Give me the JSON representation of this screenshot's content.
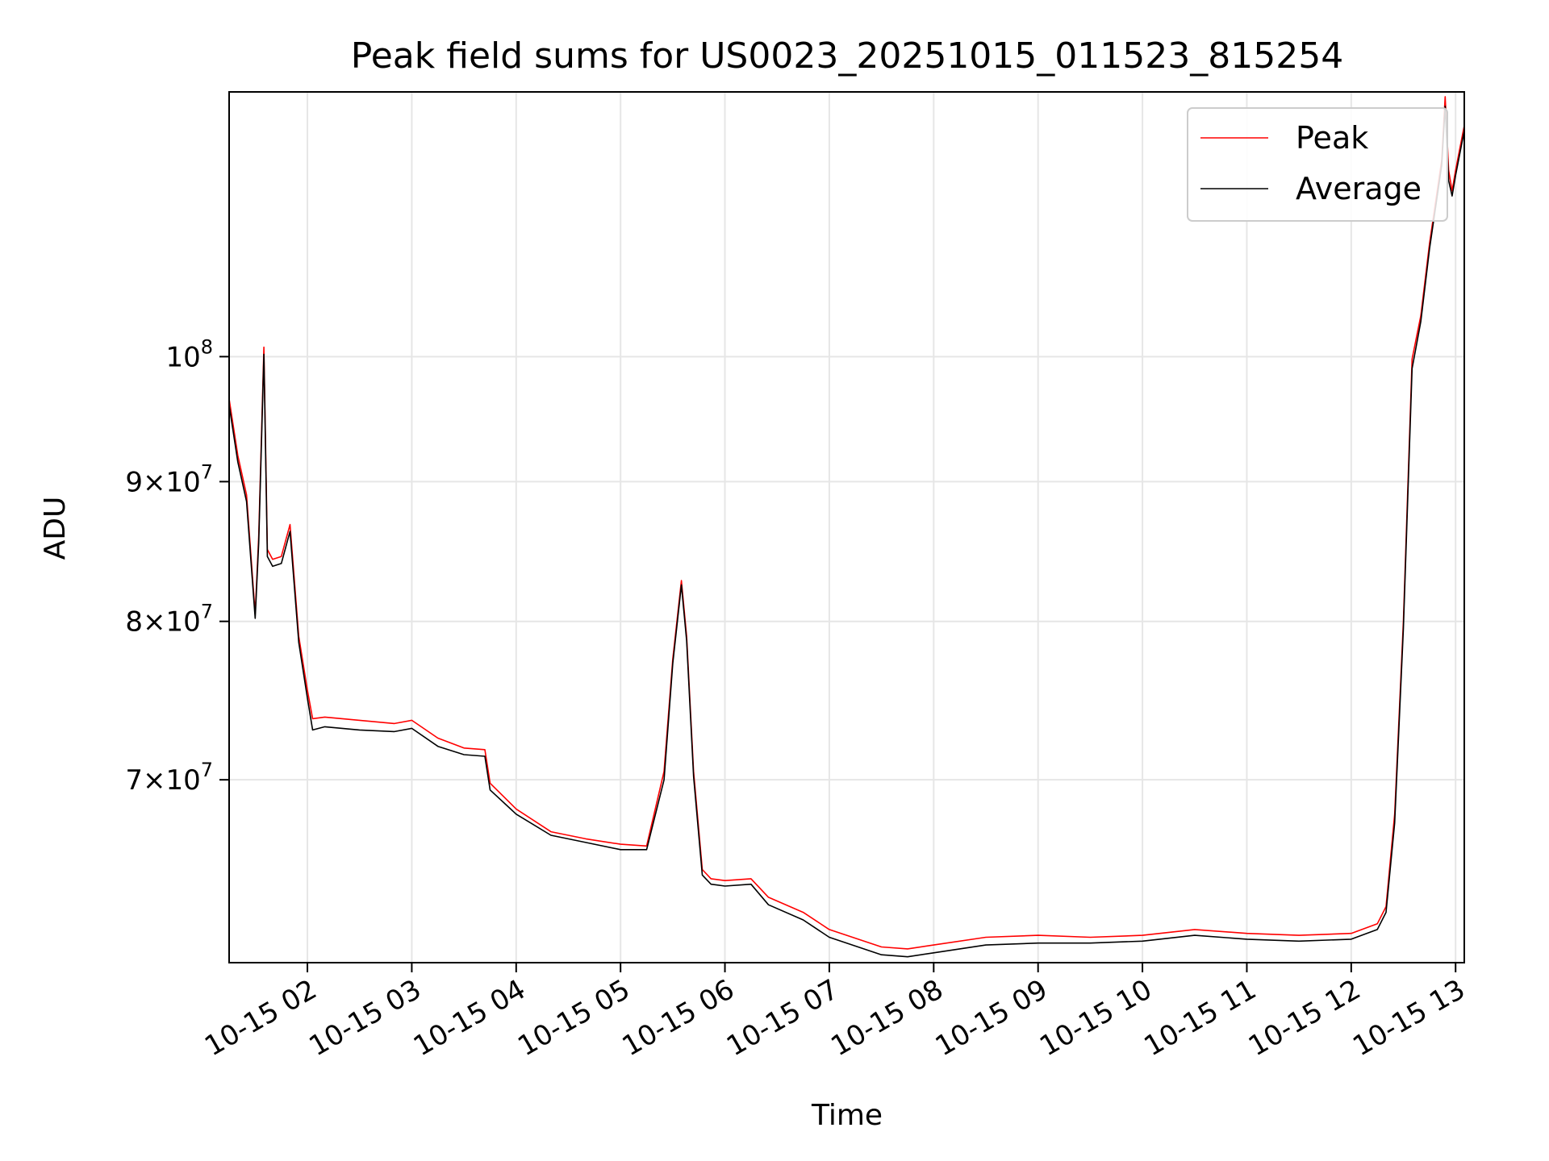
{
  "chart_data": {
    "type": "line",
    "title": "Peak field sums for US0023_20251015_011523_815254",
    "xlabel": "Time",
    "ylabel": "ADU",
    "yscale": "log",
    "xlim": [
      "2025-10-15 01:15",
      "2025-10-15 13:05"
    ],
    "ylim": [
      60000000,
      125000000
    ],
    "grid": true,
    "legend": "upper right",
    "x_ticks": [
      {
        "t": "2025-10-15 02:00",
        "label": "10-15 02"
      },
      {
        "t": "2025-10-15 03:00",
        "label": "10-15 03"
      },
      {
        "t": "2025-10-15 04:00",
        "label": "10-15 04"
      },
      {
        "t": "2025-10-15 05:00",
        "label": "10-15 05"
      },
      {
        "t": "2025-10-15 06:00",
        "label": "10-15 06"
      },
      {
        "t": "2025-10-15 07:00",
        "label": "10-15 07"
      },
      {
        "t": "2025-10-15 08:00",
        "label": "10-15 08"
      },
      {
        "t": "2025-10-15 09:00",
        "label": "10-15 09"
      },
      {
        "t": "2025-10-15 10:00",
        "label": "10-15 10"
      },
      {
        "t": "2025-10-15 11:00",
        "label": "10-15 11"
      },
      {
        "t": "2025-10-15 12:00",
        "label": "10-15 12"
      },
      {
        "t": "2025-10-15 13:00",
        "label": "10-15 13"
      }
    ],
    "y_ticks": [
      {
        "v": 70000000,
        "mant": "7",
        "exp": "7"
      },
      {
        "v": 80000000,
        "mant": "8",
        "exp": "7"
      },
      {
        "v": 90000000,
        "mant": "9",
        "exp": "7"
      },
      {
        "v": 100000000,
        "mant": "",
        "exp": "8"
      }
    ],
    "series": [
      {
        "name": "Peak",
        "color": "#ff0000",
        "x": [
          "2025-10-15 01:15",
          "2025-10-15 01:20",
          "2025-10-15 01:25",
          "2025-10-15 01:30",
          "2025-10-15 01:32",
          "2025-10-15 01:35",
          "2025-10-15 01:37",
          "2025-10-15 01:40",
          "2025-10-15 01:45",
          "2025-10-15 01:50",
          "2025-10-15 01:55",
          "2025-10-15 02:00",
          "2025-10-15 02:03",
          "2025-10-15 02:10",
          "2025-10-15 02:30",
          "2025-10-15 02:50",
          "2025-10-15 03:00",
          "2025-10-15 03:15",
          "2025-10-15 03:30",
          "2025-10-15 03:42",
          "2025-10-15 03:45",
          "2025-10-15 04:00",
          "2025-10-15 04:20",
          "2025-10-15 04:40",
          "2025-10-15 05:00",
          "2025-10-15 05:15",
          "2025-10-15 05:25",
          "2025-10-15 05:30",
          "2025-10-15 05:35",
          "2025-10-15 05:38",
          "2025-10-15 05:42",
          "2025-10-15 05:47",
          "2025-10-15 05:52",
          "2025-10-15 06:00",
          "2025-10-15 06:15",
          "2025-10-15 06:25",
          "2025-10-15 06:45",
          "2025-10-15 07:00",
          "2025-10-15 07:30",
          "2025-10-15 07:45",
          "2025-10-15 08:00",
          "2025-10-15 08:30",
          "2025-10-15 09:00",
          "2025-10-15 09:30",
          "2025-10-15 10:00",
          "2025-10-15 10:30",
          "2025-10-15 11:00",
          "2025-10-15 11:30",
          "2025-10-15 12:00",
          "2025-10-15 12:15",
          "2025-10-15 12:20",
          "2025-10-15 12:25",
          "2025-10-15 12:30",
          "2025-10-15 12:35",
          "2025-10-15 12:40",
          "2025-10-15 12:45",
          "2025-10-15 12:52",
          "2025-10-15 12:54",
          "2025-10-15 12:56",
          "2025-10-15 12:58",
          "2025-10-15 13:00",
          "2025-10-15 13:05"
        ],
        "y": [
          96500000,
          92000000,
          89000000,
          80500000,
          86000000,
          100800000,
          85000000,
          84300000,
          84500000,
          86800000,
          79000000,
          75500000,
          73700000,
          73800000,
          73600000,
          73400000,
          73600000,
          72500000,
          71900000,
          71800000,
          69800000,
          68300000,
          67000000,
          66600000,
          66300000,
          66200000,
          70500000,
          77500000,
          82800000,
          79000000,
          70500000,
          64900000,
          64400000,
          64300000,
          64400000,
          63400000,
          62600000,
          61700000,
          60800000,
          60700000,
          60900000,
          61300000,
          61400000,
          61300000,
          61400000,
          61700000,
          61500000,
          61400000,
          61500000,
          62000000,
          62900000,
          68000000,
          80000000,
          99800000,
          103500000,
          110000000,
          118000000,
          124500000,
          117000000,
          115000000,
          117000000,
          121500000
        ]
      },
      {
        "name": "Average",
        "color": "#000000",
        "x": [
          "2025-10-15 01:15",
          "2025-10-15 01:20",
          "2025-10-15 01:25",
          "2025-10-15 01:30",
          "2025-10-15 01:32",
          "2025-10-15 01:35",
          "2025-10-15 01:37",
          "2025-10-15 01:40",
          "2025-10-15 01:45",
          "2025-10-15 01:50",
          "2025-10-15 01:55",
          "2025-10-15 02:00",
          "2025-10-15 02:03",
          "2025-10-15 02:10",
          "2025-10-15 02:30",
          "2025-10-15 02:50",
          "2025-10-15 03:00",
          "2025-10-15 03:15",
          "2025-10-15 03:30",
          "2025-10-15 03:42",
          "2025-10-15 03:45",
          "2025-10-15 04:00",
          "2025-10-15 04:20",
          "2025-10-15 04:40",
          "2025-10-15 05:00",
          "2025-10-15 05:15",
          "2025-10-15 05:25",
          "2025-10-15 05:30",
          "2025-10-15 05:35",
          "2025-10-15 05:38",
          "2025-10-15 05:42",
          "2025-10-15 05:47",
          "2025-10-15 05:52",
          "2025-10-15 06:00",
          "2025-10-15 06:15",
          "2025-10-15 06:25",
          "2025-10-15 06:45",
          "2025-10-15 07:00",
          "2025-10-15 07:30",
          "2025-10-15 07:45",
          "2025-10-15 08:00",
          "2025-10-15 08:30",
          "2025-10-15 09:00",
          "2025-10-15 09:30",
          "2025-10-15 10:00",
          "2025-10-15 10:30",
          "2025-10-15 11:00",
          "2025-10-15 11:30",
          "2025-10-15 12:00",
          "2025-10-15 12:15",
          "2025-10-15 12:20",
          "2025-10-15 12:25",
          "2025-10-15 12:30",
          "2025-10-15 12:35",
          "2025-10-15 12:40",
          "2025-10-15 12:45",
          "2025-10-15 12:52",
          "2025-10-15 12:54",
          "2025-10-15 12:56",
          "2025-10-15 12:58",
          "2025-10-15 13:00",
          "2025-10-15 13:05"
        ],
        "y": [
          96000000,
          91500000,
          88500000,
          80200000,
          85500000,
          100200000,
          84500000,
          83800000,
          84000000,
          86300000,
          78600000,
          75000000,
          73000000,
          73200000,
          73000000,
          72900000,
          73100000,
          72000000,
          71500000,
          71400000,
          69400000,
          68000000,
          66800000,
          66400000,
          66000000,
          66000000,
          70000000,
          77200000,
          82500000,
          78700000,
          70200000,
          64600000,
          64100000,
          64000000,
          64100000,
          63000000,
          62200000,
          61300000,
          60400000,
          60300000,
          60500000,
          60900000,
          61000000,
          61000000,
          61100000,
          61400000,
          61200000,
          61100000,
          61200000,
          61700000,
          62600000,
          67500000,
          79500000,
          99000000,
          103000000,
          109500000,
          117500000,
          123500000,
          116000000,
          114500000,
          116500000,
          121000000
        ]
      }
    ]
  }
}
